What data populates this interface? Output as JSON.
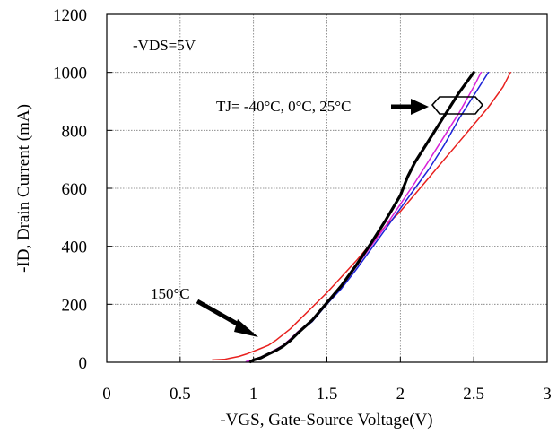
{
  "chart_data": {
    "type": "line",
    "xlabel": "-VGS, Gate-Source Voltage(V)",
    "ylabel": "-ID, Drain Current (mA)",
    "xlim": [
      0,
      3
    ],
    "ylim": [
      0,
      1200
    ],
    "xticks": [
      "0",
      "0.5",
      "1",
      "1.5",
      "2",
      "2.5",
      "3"
    ],
    "yticks": [
      "0",
      "200",
      "400",
      "600",
      "800",
      "1000",
      "1200"
    ],
    "grid": true,
    "condition_label": "-VDS=5V",
    "annotations": {
      "tj_label": "TJ= -40°C, 0°C, 25°C",
      "hot_label": "150°C"
    },
    "series": [
      {
        "color": "#e8201e",
        "width": 1.5,
        "x": [
          0.72,
          0.8,
          0.85,
          0.9,
          0.95,
          1.0,
          1.05,
          1.1,
          1.15,
          1.2,
          1.25,
          1.3,
          1.4,
          1.5,
          1.6,
          1.7,
          1.8,
          1.9,
          2.0,
          2.1,
          2.2,
          2.3,
          2.4,
          2.5,
          2.6,
          2.7,
          2.75
        ],
        "y": [
          8,
          10,
          15,
          20,
          28,
          38,
          48,
          58,
          75,
          95,
          115,
          140,
          190,
          240,
          295,
          350,
          410,
          470,
          520,
          580,
          640,
          700,
          760,
          820,
          880,
          950,
          1000
        ]
      },
      {
        "color": "#1c23d8",
        "width": 1.5,
        "x": [
          0.95,
          1.0,
          1.05,
          1.1,
          1.15,
          1.2,
          1.25,
          1.3,
          1.4,
          1.5,
          1.6,
          1.7,
          1.8,
          1.9,
          2.0,
          2.1,
          2.2,
          2.3,
          2.4,
          2.5,
          2.6
        ],
        "y": [
          2,
          8,
          18,
          28,
          42,
          55,
          75,
          100,
          140,
          200,
          255,
          320,
          390,
          460,
          530,
          600,
          670,
          750,
          840,
          920,
          1000
        ]
      },
      {
        "color": "#d821d8",
        "width": 1.5,
        "x": [
          0.95,
          1.0,
          1.05,
          1.1,
          1.15,
          1.2,
          1.25,
          1.3,
          1.4,
          1.5,
          1.6,
          1.7,
          1.8,
          1.9,
          2.0,
          2.1,
          2.2,
          2.3,
          2.4,
          2.5,
          2.55
        ],
        "y": [
          2,
          8,
          18,
          30,
          44,
          58,
          80,
          105,
          145,
          205,
          262,
          330,
          400,
          470,
          545,
          620,
          700,
          780,
          860,
          950,
          1000
        ]
      },
      {
        "color": "#000000",
        "width": 3.2,
        "x": [
          0.98,
          1.0,
          1.05,
          1.1,
          1.15,
          1.2,
          1.25,
          1.3,
          1.4,
          1.5,
          1.6,
          1.7,
          1.8,
          1.9,
          2.0,
          2.05,
          2.1,
          2.2,
          2.3,
          2.4,
          2.5
        ],
        "y": [
          2,
          8,
          15,
          28,
          40,
          55,
          75,
          100,
          145,
          205,
          265,
          335,
          410,
          490,
          575,
          640,
          690,
          770,
          850,
          930,
          1000
        ]
      }
    ]
  }
}
